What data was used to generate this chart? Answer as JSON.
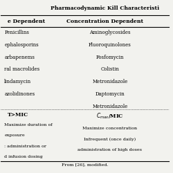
{
  "title": "Pharmacodynamic Kill Characteristi",
  "col1_header": "e Dependent",
  "col2_header": "Concentration Dependent",
  "col1_drugs": [
    "Penicillins",
    "ephalosporins",
    "arbapenems",
    "ral macrolides",
    "lindamycin",
    "azolidinones"
  ],
  "col2_drugs": [
    "Aminoglycosides",
    "Fluoroquinolones",
    "Fosfomycin",
    "Colistin",
    "Metronidazole",
    "Daptomycin",
    "Metronidazole"
  ],
  "col1_pk": "T>MIC",
  "col1_strategy": [
    "Maximize duration of",
    "exposure",
    ": administration or",
    "d infusion dosing"
  ],
  "col2_strategy": [
    "Maximize concentration",
    "Infrequent (once daily)",
    "administration of high doses"
  ],
  "footer": "From [26], modified.",
  "bg_color": "#f2f2ee"
}
